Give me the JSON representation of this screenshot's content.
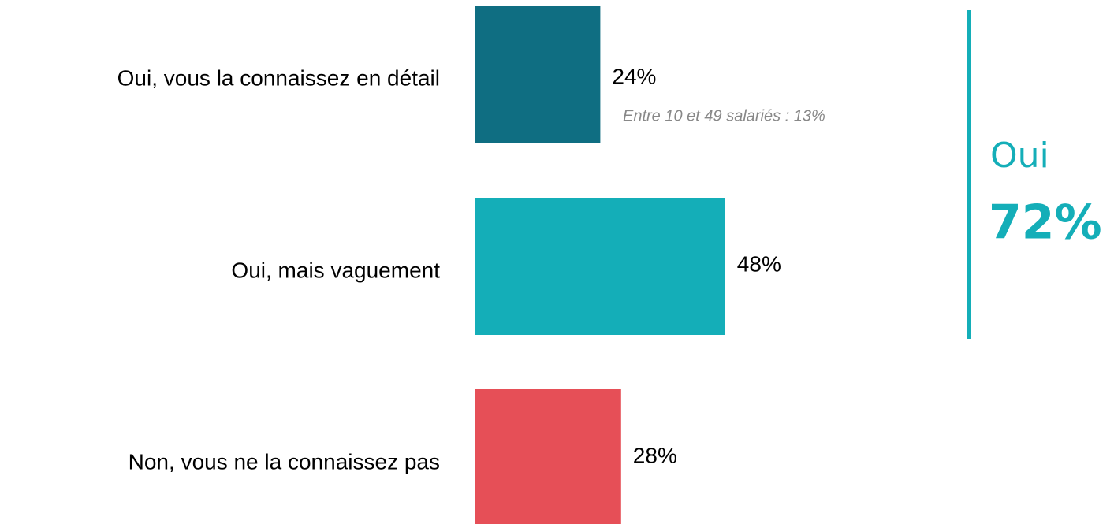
{
  "chart_data": {
    "type": "barh",
    "categories": [
      "Oui, vous la connaissez en détail",
      "Oui, mais vaguement",
      "Non, vous ne la connaissez pas"
    ],
    "values": [
      24,
      48,
      28
    ],
    "value_labels": [
      "24%",
      "48%",
      "28%"
    ],
    "colors": [
      "#0f6e82",
      "#14aeb8",
      "#e64f57"
    ],
    "annotation": "Entre 10 et 49 salariés : 13%",
    "summary": {
      "label": "Oui",
      "text": "72%",
      "color": "#14aeb8"
    }
  }
}
